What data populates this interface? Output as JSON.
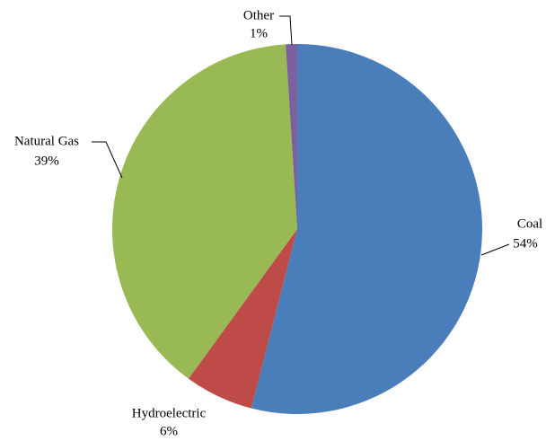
{
  "chart_data": {
    "type": "pie",
    "categories": [
      "Coal",
      "Hydroelectric",
      "Natural Gas",
      "Other"
    ],
    "values": [
      54,
      6,
      39,
      1
    ],
    "value_labels": [
      "54%",
      "6%",
      "39%",
      "1%"
    ],
    "colors": [
      "#4a7ebb",
      "#be4b48",
      "#98b954",
      "#7d60a0"
    ]
  }
}
